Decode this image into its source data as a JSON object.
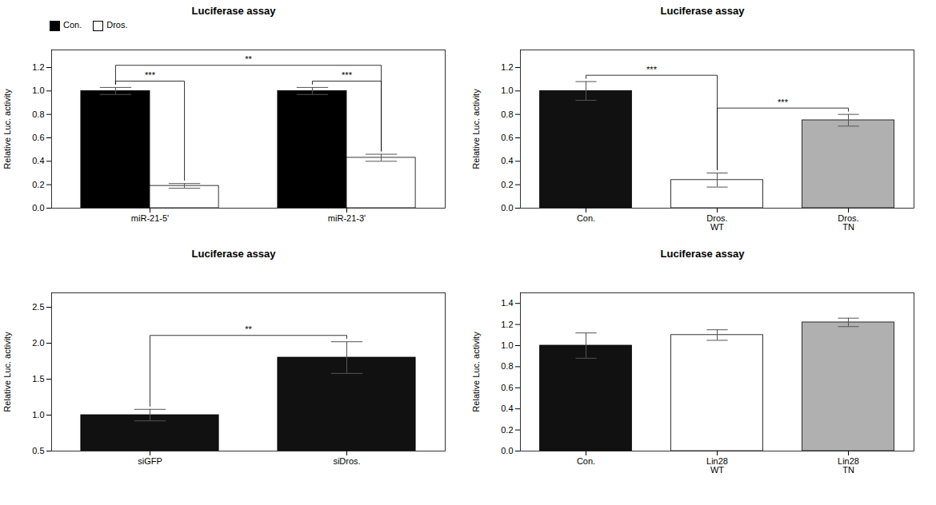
{
  "chart_data": [
    {
      "type": "bar",
      "title": "Luciferase assay",
      "ylabel": "Relative Luc. activity",
      "categories": [
        "miR-21-5'",
        "miR-21-3'"
      ],
      "series": [
        {
          "name": "Con.",
          "color": "black",
          "values": [
            1.0,
            1.0
          ],
          "errors": [
            0.03,
            0.03
          ]
        },
        {
          "name": "Dros.",
          "color": "white",
          "values": [
            0.19,
            0.43
          ],
          "errors": [
            0.02,
            0.03
          ]
        }
      ],
      "ylim": [
        0,
        1.35
      ],
      "yticks": [
        {
          "value": 0,
          "label": "0.0"
        },
        0.2,
        0.4,
        0.6,
        0.8,
        {
          "value": 1.0,
          "label": "1.0"
        },
        1.2
      ],
      "legend": "upper left",
      "annotations": [
        {
          "text": "***",
          "from": [
            "miR-21-5'",
            "Con."
          ],
          "to": [
            "miR-21-5'",
            "Dros."
          ]
        },
        {
          "text": "***",
          "from": [
            "miR-21-3'",
            "Con."
          ],
          "to": [
            "miR-21-3'",
            "Dros."
          ]
        },
        {
          "text": "**",
          "from": [
            "miR-21-5'",
            "Con."
          ],
          "to": [
            "miR-21-3'",
            "Dros."
          ]
        }
      ]
    },
    {
      "type": "bar",
      "title": "Luciferase assay",
      "ylabel": "Relative Luc. activity",
      "categories": [
        "Con.",
        "Dros.\nWT",
        "Dros.\nTN"
      ],
      "values": [
        1.0,
        0.24,
        0.75
      ],
      "errors": [
        0.08,
        0.06,
        0.05
      ],
      "colors": [
        "#111111",
        "white",
        "#b0b0b0"
      ],
      "ylim": [
        0,
        1.35
      ],
      "yticks": [
        {
          "value": 0,
          "label": "0.0"
        },
        0.2,
        0.4,
        0.6,
        0.8,
        {
          "value": 1.0,
          "label": "1.0"
        },
        1.2
      ],
      "annotations": [
        {
          "text": "***",
          "from": [
            "Con."
          ],
          "to": [
            "Dros.\nWT"
          ]
        },
        {
          "text": "***",
          "from": [
            "Dros.\nWT"
          ],
          "to": [
            "Dros.\nTN"
          ]
        }
      ]
    },
    {
      "type": "bar",
      "title": "Luciferase assay",
      "ylabel": "Relative Luc. activity",
      "categories": [
        "siGFP",
        "siDros."
      ],
      "values": [
        1.0,
        1.8
      ],
      "errors": [
        0.08,
        0.22
      ],
      "colors": [
        "#111111",
        "#111111"
      ],
      "ylim": [
        0.5,
        2.7
      ],
      "yticks": [
        0.5,
        {
          "value": 1.0,
          "label": "1.0"
        },
        1.5,
        {
          "value": 2.0,
          "label": "2.0"
        },
        2.5
      ],
      "annotations": [
        {
          "text": "**",
          "from": [
            "siGFP"
          ],
          "to": [
            "siDros."
          ]
        }
      ]
    },
    {
      "type": "bar",
      "title": "Luciferase assay",
      "ylabel": "Relative Luc. activity",
      "categories": [
        "Con.",
        "Lin28\nWT",
        "Lin28\nTN"
      ],
      "values": [
        1.0,
        1.1,
        1.22
      ],
      "errors": [
        0.12,
        0.05,
        0.04
      ],
      "colors": [
        "#111111",
        "white",
        "#b0b0b0"
      ],
      "ylim": [
        0,
        1.5
      ],
      "yticks": [
        {
          "value": 0,
          "label": "0.0"
        },
        0.2,
        0.4,
        0.6,
        0.8,
        {
          "value": 1.0,
          "label": "1.0"
        },
        1.2,
        1.4
      ]
    }
  ]
}
